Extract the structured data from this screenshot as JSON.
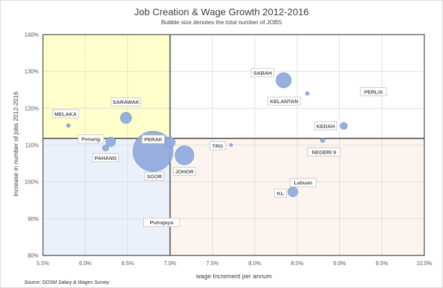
{
  "chart_data": {
    "type": "bubble",
    "title": "Job Creation & Wage Growth 2012-2016",
    "subtitle": "Bubble size denotes the total number of JOBS",
    "xlabel": "wage Increment per annum",
    "ylabel": "Increase in number of jobs 2012-2016",
    "xlim": [
      5.5,
      10.0
    ],
    "ylim": [
      80,
      140
    ],
    "x_ticks": [
      "5.5%",
      "6.0%",
      "6.5%",
      "7.0%",
      "7.5%",
      "8.0%",
      "8.5%",
      "9.0%",
      "9.5%",
      "10.0%"
    ],
    "y_ticks": [
      "80%",
      "90%",
      "100%",
      "110%",
      "120%",
      "130%",
      "140%"
    ],
    "quadrant_split": {
      "x": 7.0,
      "y": 111.8
    },
    "quadrant_colors": {
      "top_left": "#ffffcc",
      "bottom_left": "#eaf1fb",
      "bottom_right": "#fdf4ef",
      "top_right": "#ffffff"
    },
    "bubble_color": "#8ea9db",
    "source": "Source: DOSM Salary & Wages Survey",
    "points": [
      {
        "label": "SABAH",
        "x": 8.34,
        "y": 127.6,
        "size": 130
      },
      {
        "label": "KELANTAN",
        "x": 8.62,
        "y": 124.0,
        "size": 8
      },
      {
        "label": "PERLIS",
        "x": 9.4,
        "y": 124.5,
        "size": 0
      },
      {
        "label": "SARAWAK",
        "x": 6.48,
        "y": 117.4,
        "size": 70
      },
      {
        "label": "MELAKA",
        "x": 5.8,
        "y": 115.3,
        "size": 8
      },
      {
        "label": "KEDAH",
        "x": 9.05,
        "y": 115.2,
        "size": 28
      },
      {
        "label": "Penang",
        "x": 6.3,
        "y": 110.9,
        "size": 50
      },
      {
        "label": "PERAK",
        "x": 7.0,
        "y": 110.8,
        "size": 60
      },
      {
        "label": "NEGERI 9",
        "x": 8.8,
        "y": 111.3,
        "size": 10
      },
      {
        "label": "TRG",
        "x": 7.72,
        "y": 110.0,
        "size": 4
      },
      {
        "label": "PAHANG",
        "x": 6.24,
        "y": 109.2,
        "size": 22
      },
      {
        "label": "SGOR",
        "x": 6.8,
        "y": 108.3,
        "size": 900
      },
      {
        "label": "JOHOR",
        "x": 7.17,
        "y": 107.2,
        "size": 200
      },
      {
        "label": "Labuan",
        "x": 8.57,
        "y": 99.8,
        "size": 0
      },
      {
        "label": "KL",
        "x": 8.45,
        "y": 97.3,
        "size": 55
      },
      {
        "label": "Putrajaya",
        "x": 6.9,
        "y": 89.0,
        "size": 0
      }
    ]
  }
}
